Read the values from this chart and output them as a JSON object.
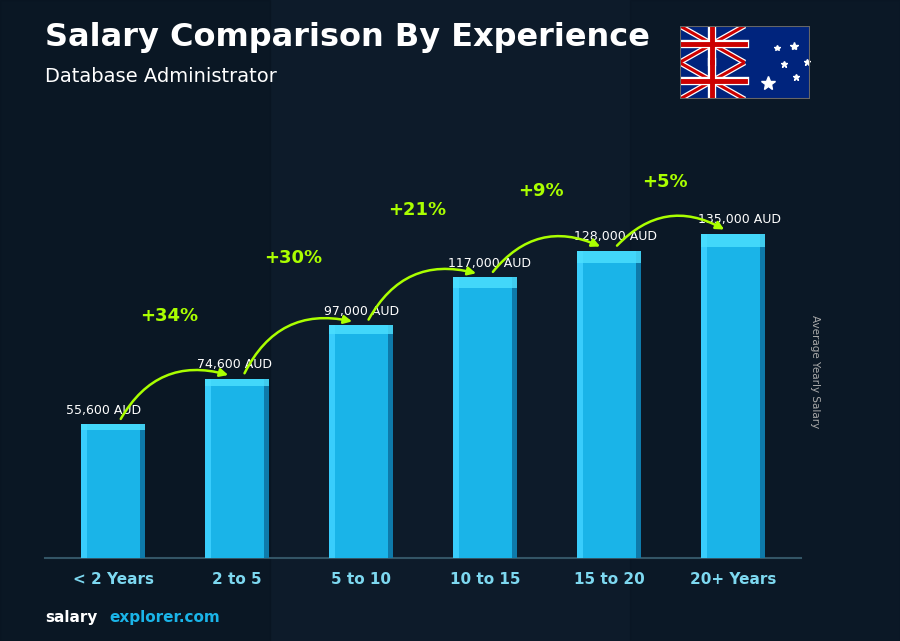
{
  "categories": [
    "< 2 Years",
    "2 to 5",
    "5 to 10",
    "10 to 15",
    "15 to 20",
    "20+ Years"
  ],
  "values": [
    55600,
    74600,
    97000,
    117000,
    128000,
    135000
  ],
  "labels": [
    "55,600 AUD",
    "74,600 AUD",
    "97,000 AUD",
    "117,000 AUD",
    "128,000 AUD",
    "135,000 AUD"
  ],
  "pct_changes": [
    "+34%",
    "+30%",
    "+21%",
    "+9%",
    "+5%"
  ],
  "bar_color_main": "#1ab4e8",
  "bar_color_left": "#3dd0ff",
  "bar_color_right": "#0e7aaa",
  "bar_color_top": "#4de0ff",
  "title": "Salary Comparison By Experience",
  "subtitle": "Database Administrator",
  "ylabel": "Average Yearly Salary",
  "pct_color": "#aaff00",
  "title_color": "#ffffff",
  "subtitle_color": "#ffffff",
  "label_color": "#ffffff",
  "footer_salary_color": "#ffffff",
  "footer_explorer_color": "#1ab4e8",
  "bg_dark": "#0d1b2a",
  "ylim_max": 155000,
  "bar_width": 0.52
}
